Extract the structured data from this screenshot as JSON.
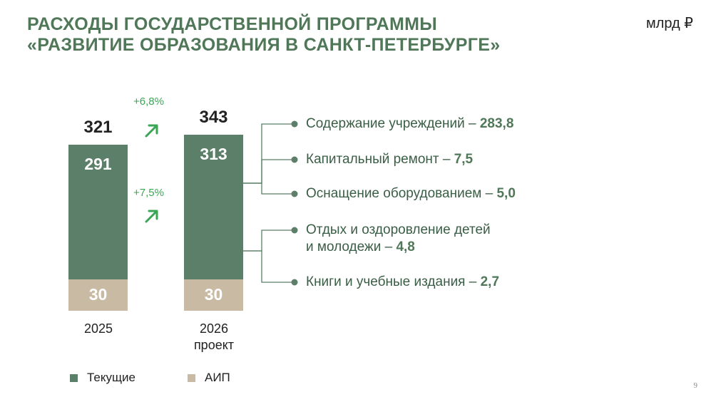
{
  "title": {
    "line1": "РАСХОДЫ ГОСУДАРСТВЕННОЙ ПРОГРАММЫ",
    "line2": "«РАЗВИТИЕ ОБРАЗОВАНИЯ В САНКТ-ПЕТЕРБУРГЕ»"
  },
  "unit": "млрд ₽",
  "colors": {
    "current": "#5b7f68",
    "aip": "#c8baa3",
    "growth": "#3aa655",
    "title": "#4f7758"
  },
  "chart_data": {
    "type": "bar",
    "stacked": true,
    "categories": [
      "2025",
      "2026 проект"
    ],
    "series": [
      {
        "name": "Текущие",
        "values": [
          291,
          313
        ]
      },
      {
        "name": "АИП",
        "values": [
          30,
          30
        ]
      }
    ],
    "totals": [
      321,
      343
    ],
    "value_labels": {
      "totals": [
        "321",
        "343"
      ],
      "current": [
        "291",
        "313"
      ],
      "aip": [
        "30",
        "30"
      ]
    },
    "year_labels": {
      "y2025": "2025",
      "y2026_line1": "2026",
      "y2026_line2": "проект"
    },
    "growth_total": "+6,8%",
    "growth_current": "+7,5%",
    "legend": {
      "current": "Текущие",
      "aip": "АИП",
      "position": "bottom-left"
    },
    "breakdown": [
      {
        "label": "Содержание учреждений – ",
        "value": "283,8"
      },
      {
        "label": "Капитальный ремонт – ",
        "value": "7,5"
      },
      {
        "label": "Оснащение оборудованием – ",
        "value": "5,0"
      },
      {
        "label_line1": "Отдых и оздоровление детей",
        "label_line2": "и молодежи – ",
        "value": "4,8"
      },
      {
        "label": "Книги и учебные издания – ",
        "value": "2,7"
      }
    ]
  },
  "page_number": "9"
}
